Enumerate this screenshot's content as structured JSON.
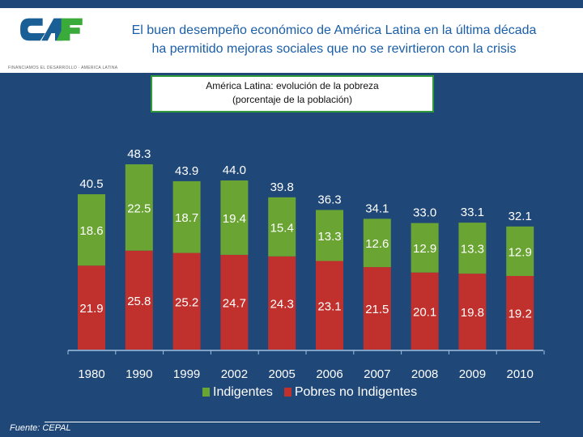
{
  "header": {
    "logo_text": "CAF",
    "logo_tagline": "FINANCIAMOS EL DESARROLLO · AMERICA LATINA",
    "title_line1": "El buen desempeño económico de América Latina en la última década",
    "title_line2": "ha permitido mejoras sociales que no se revirtieron con la crisis"
  },
  "colors": {
    "green": "#6aa534",
    "red": "#c0312e",
    "background": "#1f4778",
    "title": "#1a5ea8"
  },
  "chart_data": {
    "type": "bar",
    "stacked": true,
    "title_line1": "América Latina: evolución de la pobreza",
    "title_line2": "(porcentaje de la población)",
    "categories": [
      "1980",
      "1990",
      "1999",
      "2002",
      "2005",
      "2006",
      "2007",
      "2008",
      "2009",
      "2010"
    ],
    "series": [
      {
        "name": "Pobres no Indigentes",
        "color": "#c0312e",
        "values": [
          21.9,
          25.8,
          25.2,
          24.7,
          24.3,
          23.1,
          21.5,
          20.1,
          19.8,
          19.2
        ]
      },
      {
        "name": "Indigentes",
        "color": "#6aa534",
        "values": [
          18.6,
          22.5,
          18.7,
          19.4,
          15.4,
          13.3,
          12.6,
          12.9,
          13.3,
          12.9
        ]
      }
    ],
    "totals": [
      40.5,
      48.3,
      43.9,
      44.0,
      39.8,
      36.3,
      34.1,
      33.0,
      33.1,
      32.1
    ],
    "legend": [
      "Indigentes",
      "Pobres no Indigentes"
    ],
    "legend_position": "bottom"
  },
  "footer": {
    "source": "Fuente: CEPAL"
  }
}
